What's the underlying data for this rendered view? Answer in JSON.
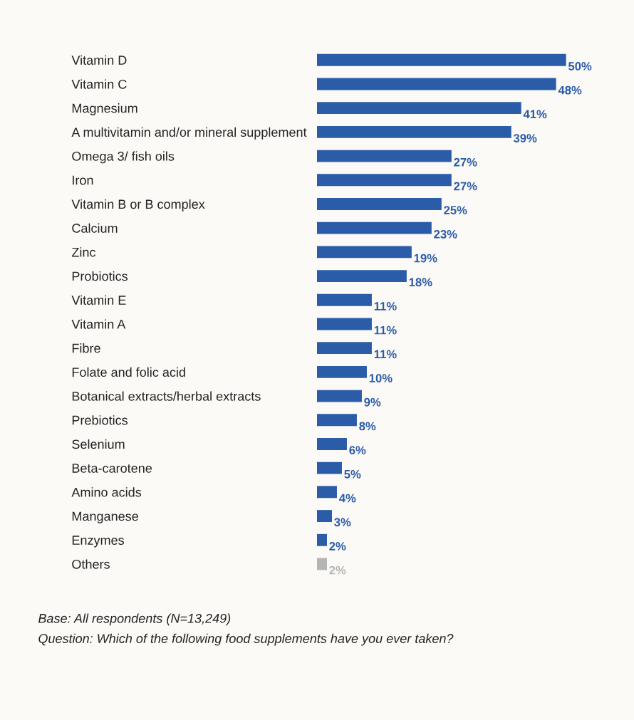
{
  "chart_data": {
    "type": "bar",
    "orientation": "horizontal",
    "categories": [
      "Vitamin D",
      "Vitamin C",
      "Magnesium",
      "A multivitamin and/or mineral supplement",
      "Omega 3/ fish oils",
      "Iron",
      "Vitamin B or B complex",
      "Calcium",
      "Zinc",
      "Probiotics",
      "Vitamin E",
      "Vitamin A",
      "Fibre",
      "Folate and folic acid",
      "Botanical extracts/herbal extracts",
      "Prebiotics",
      "Selenium",
      "Beta-carotene",
      "Amino acids",
      "Manganese",
      "Enzymes",
      "Others"
    ],
    "values": [
      50,
      48,
      41,
      39,
      27,
      27,
      25,
      23,
      19,
      18,
      11,
      11,
      11,
      10,
      9,
      8,
      6,
      5,
      4,
      3,
      2,
      2
    ],
    "colors": [
      "#2b5ca8",
      "#2b5ca8",
      "#2b5ca8",
      "#2b5ca8",
      "#2b5ca8",
      "#2b5ca8",
      "#2b5ca8",
      "#2b5ca8",
      "#2b5ca8",
      "#2b5ca8",
      "#2b5ca8",
      "#2b5ca8",
      "#2b5ca8",
      "#2b5ca8",
      "#2b5ca8",
      "#2b5ca8",
      "#2b5ca8",
      "#2b5ca8",
      "#2b5ca8",
      "#2b5ca8",
      "#2b5ca8",
      "#b5b5b5"
    ],
    "value_labels": [
      "50%",
      "48%",
      "41%",
      "39%",
      "27%",
      "27%",
      "25%",
      "23%",
      "19%",
      "18%",
      "11%",
      "11%",
      "11%",
      "10%",
      "9%",
      "8%",
      "6%",
      "5%",
      "4%",
      "3%",
      "2%",
      "2%"
    ],
    "grid": false,
    "legend": false,
    "annotations": [
      "Base: All respondents (N=13,249)",
      "Question: Which of the following food supplements have you ever taken?"
    ]
  }
}
